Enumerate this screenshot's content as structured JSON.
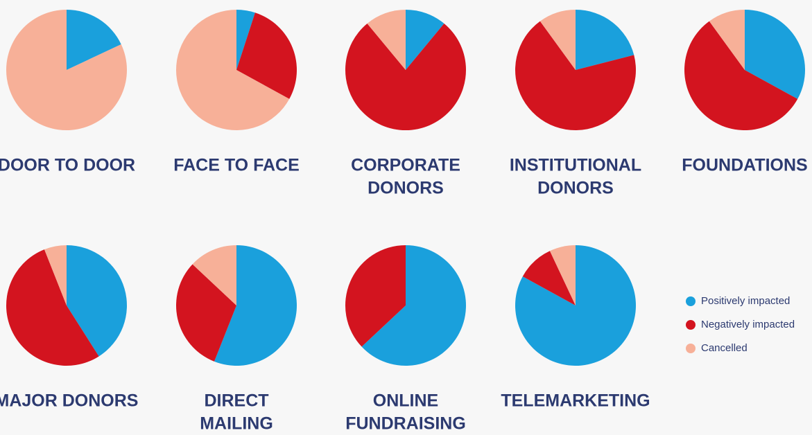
{
  "legend": {
    "categories": [
      "Positively impacted",
      "Negatively impacted",
      "Cancelled"
    ],
    "colors": [
      "#1aa0dc",
      "#d3141f",
      "#f7b098"
    ]
  },
  "chart_data": [
    {
      "type": "pie",
      "title": [
        "DOOR TO DOOR"
      ],
      "values": [
        18,
        0,
        82
      ]
    },
    {
      "type": "pie",
      "title": [
        "FACE TO FACE"
      ],
      "values": [
        5,
        28,
        67
      ]
    },
    {
      "type": "pie",
      "title": [
        "CORPORATE",
        "DONORS"
      ],
      "values": [
        11,
        78,
        11
      ]
    },
    {
      "type": "pie",
      "title": [
        "INSTITUTIONAL",
        "DONORS"
      ],
      "values": [
        21,
        69,
        10
      ]
    },
    {
      "type": "pie",
      "title": [
        "FOUNDATIONS"
      ],
      "values": [
        33,
        57,
        10
      ]
    },
    {
      "type": "pie",
      "title": [
        "MAJOR DONORS"
      ],
      "values": [
        41,
        53,
        6
      ]
    },
    {
      "type": "pie",
      "title": [
        "DIRECT",
        "MAILING"
      ],
      "values": [
        56,
        31,
        13
      ]
    },
    {
      "type": "pie",
      "title": [
        "ONLINE",
        "FUNDRAISING"
      ],
      "values": [
        63,
        37,
        0
      ]
    },
    {
      "type": "pie",
      "title": [
        "TELEMARKETING"
      ],
      "values": [
        83,
        10,
        7
      ]
    }
  ]
}
